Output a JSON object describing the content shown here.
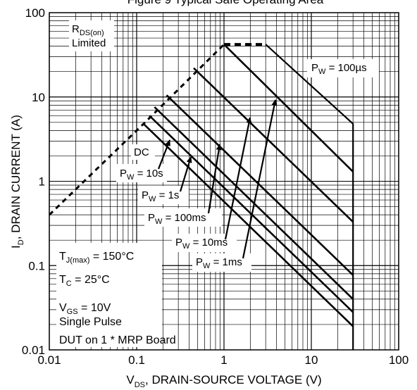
{
  "chart_data": {
    "type": "line",
    "title": "Figure 9 Typical Safe Operating Area",
    "xlabel": "V_DS, DRAIN-SOURCE VOLTAGE (V)",
    "ylabel": "I_D, DRAIN CURRENT (A)",
    "x_scale": "log",
    "y_scale": "log",
    "xlim": [
      0.01,
      100
    ],
    "ylim": [
      0.01,
      100
    ],
    "x_ticks": [
      "0.01",
      "0.1",
      "1",
      "10",
      "100"
    ],
    "y_ticks": [
      "0.01",
      "0.1",
      "1",
      "10",
      "100"
    ],
    "grid": true,
    "rds_limit_line": {
      "style": "dashed",
      "points": [
        [
          0.01,
          0.4
        ],
        [
          0.12,
          4.8
        ],
        [
          1.0,
          42
        ]
      ]
    },
    "package_limit": {
      "style": "dashed",
      "points": [
        [
          1.0,
          42
        ],
        [
          3.0,
          42
        ]
      ]
    },
    "series": [
      {
        "name": "100µs",
        "points": [
          [
            3.0,
            42
          ],
          [
            30,
            4.8
          ],
          [
            30,
            0.01
          ]
        ]
      },
      {
        "name": "1ms",
        "points": [
          [
            1.0,
            42
          ],
          [
            30,
            1.3
          ]
        ]
      },
      {
        "name": "10ms",
        "points": [
          [
            0.45,
            22
          ],
          [
            30,
            0.33
          ]
        ]
      },
      {
        "name": "100ms",
        "points": [
          [
            0.22,
            10.5
          ],
          [
            30,
            0.077
          ]
        ]
      },
      {
        "name": "1s",
        "points": [
          [
            0.16,
            7.6
          ],
          [
            30,
            0.04
          ]
        ]
      },
      {
        "name": "10s",
        "points": [
          [
            0.14,
            6.0
          ],
          [
            30,
            0.028
          ]
        ]
      },
      {
        "name": "DC",
        "points": [
          [
            0.12,
            4.8
          ],
          [
            30,
            0.019
          ]
        ]
      }
    ]
  },
  "title_text": "Figure 9 Typical Safe Operating Area",
  "annotations": {
    "rds_r": "R",
    "rds_sub": "DS(on)",
    "rds_limited": "Limited",
    "dc": "DC",
    "pw_p": "P",
    "pw_sub": "W",
    "pw_100us": " = 100µs",
    "pw_10s": " = 10s",
    "pw_1s": " = 1s",
    "pw_100ms": " = 100ms",
    "pw_10ms": " = 10ms",
    "pw_1ms": " = 1ms",
    "tj_t": "T",
    "tj_sub": "J(max)",
    "tj_val": " = 150°C",
    "tc_t": "T",
    "tc_sub": "C",
    "tc_val": " = 25°C",
    "vgs_v": "V",
    "vgs_sub": "GS",
    "vgs_val": " = 10V",
    "single_pulse": "Single Pulse",
    "board": "DUT on 1 * MRP Board"
  },
  "axis_titles": {
    "y_i": "I",
    "y_sub": "D",
    "y_rest": ", DRAIN CURRENT (A)",
    "x_v": "V",
    "x_sub": "DS",
    "x_rest": ", DRAIN-SOURCE VOLTAGE (V)"
  }
}
